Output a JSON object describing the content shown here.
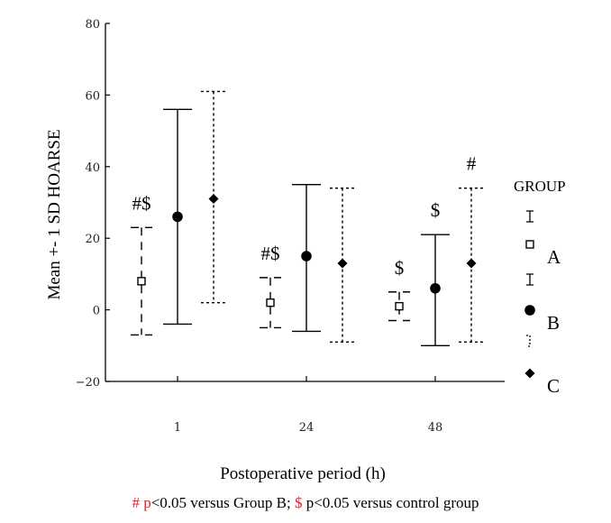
{
  "chart_data": {
    "type": "errorbar",
    "ylabel": "Mean +- 1 SD HOARSE",
    "xlabel": "Postoperative period (h)",
    "ylim": [
      -20,
      80
    ],
    "yticks": [
      -20,
      0,
      20,
      40,
      60,
      80
    ],
    "categories": [
      "1",
      "24",
      "48"
    ],
    "legend": {
      "title": "GROUP",
      "position": "right"
    },
    "series": [
      {
        "name": "A",
        "marker": "open-square",
        "line": "dashed",
        "mean": [
          8,
          2,
          1
        ],
        "low": [
          -7,
          -5,
          -3
        ],
        "high": [
          23,
          9,
          5
        ]
      },
      {
        "name": "B",
        "marker": "filled-circle",
        "line": "solid",
        "mean": [
          26,
          15,
          6
        ],
        "low": [
          -4,
          -6,
          -10
        ],
        "high": [
          56,
          35,
          21
        ]
      },
      {
        "name": "C",
        "marker": "filled-diamond",
        "line": "dotted",
        "mean": [
          31,
          13,
          13
        ],
        "low": [
          2,
          -9,
          -9
        ],
        "high": [
          61,
          34,
          34
        ]
      }
    ],
    "annotations": [
      {
        "text": "#$",
        "series": "A",
        "category": "1"
      },
      {
        "text": "#$",
        "series": "A",
        "category": "24"
      },
      {
        "text": "$",
        "series": "A",
        "category": "48"
      },
      {
        "text": "$",
        "series": "B",
        "category": "48"
      },
      {
        "text": "#",
        "series": "C",
        "category": "48"
      }
    ],
    "footnote": {
      "hash_symbol": "#",
      "p_letter": "p",
      "hash_rest": "<0.05 versus Group B;",
      "dollar_symbol": "$",
      "dollar_rest": "p<0.05 versus control group"
    },
    "colors": {
      "axis": "#000000",
      "footnote_symbol": "#ee1c25"
    }
  }
}
